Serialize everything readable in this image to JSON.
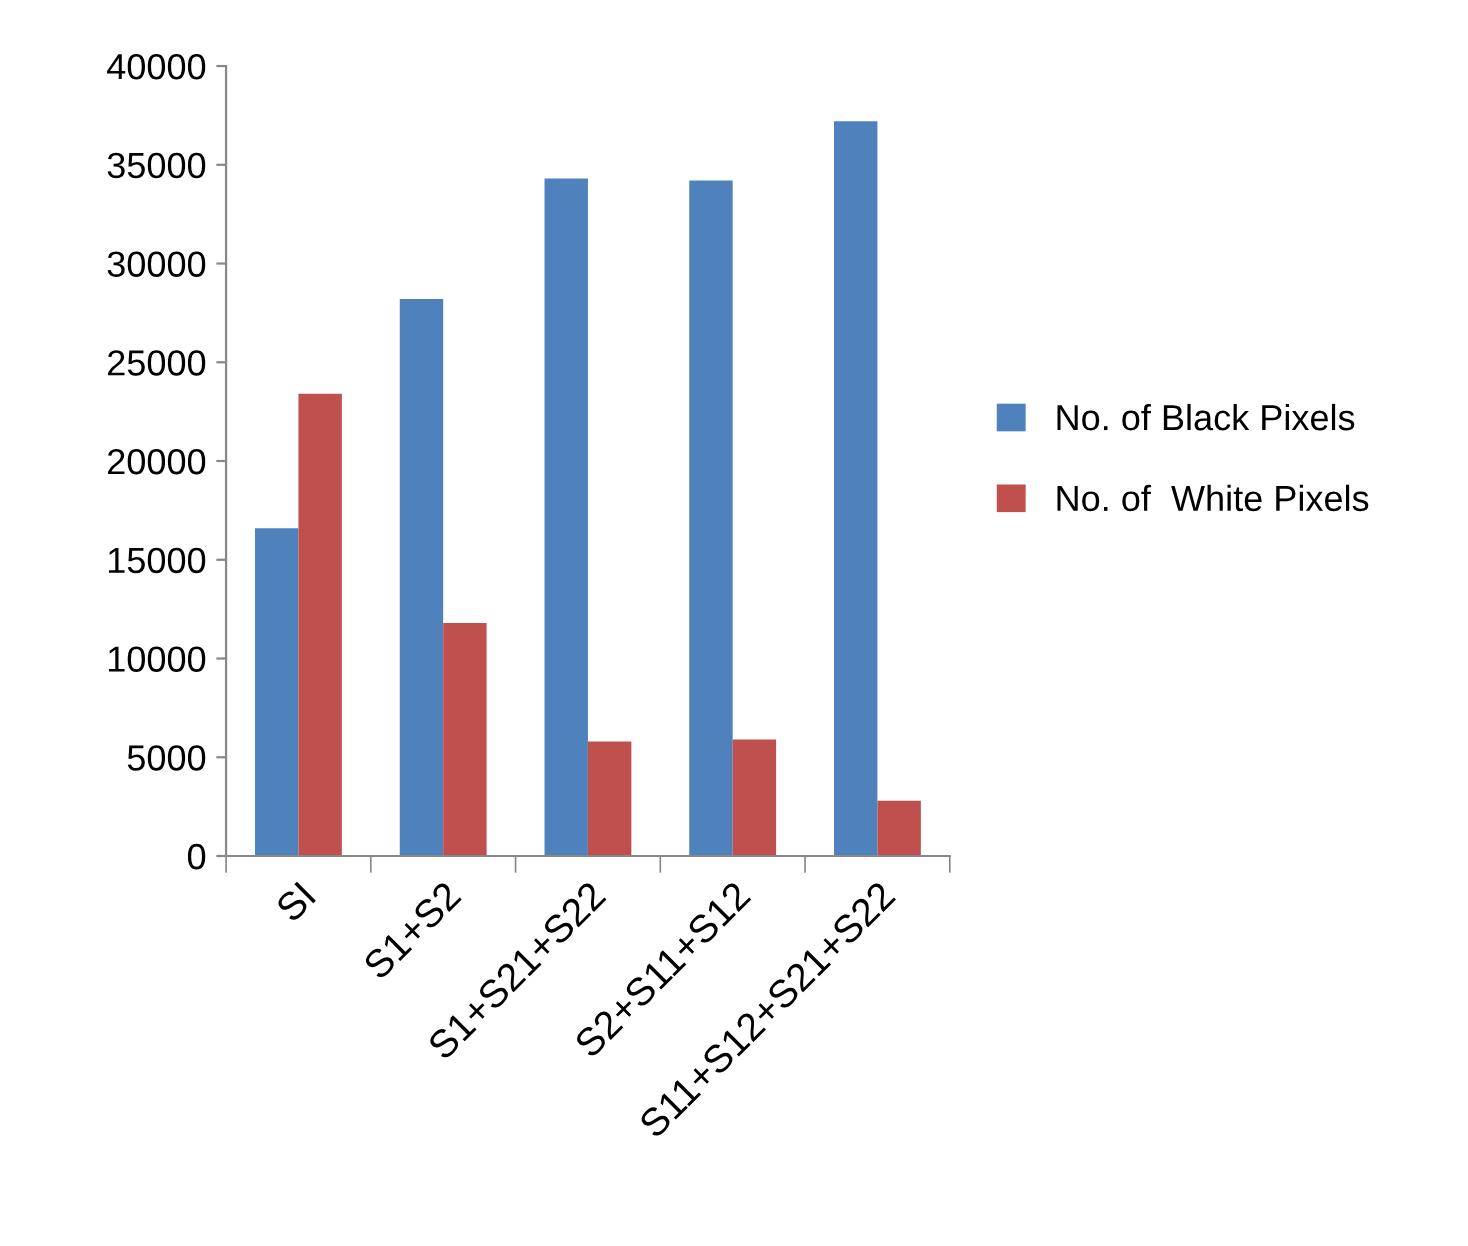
{
  "chart_data": {
    "type": "bar",
    "categories": [
      "SI",
      "S1+S2",
      "S1+S21+S22",
      "S2+S11+S12",
      "S11+S12+S21+S22"
    ],
    "series": [
      {
        "name": "No. of Black Pixels",
        "color": "#4f81bd",
        "values": [
          16600,
          28200,
          34300,
          34200,
          37200
        ]
      },
      {
        "name": "No. of  White Pixels",
        "color": "#c0504d",
        "values": [
          23400,
          11800,
          5800,
          5900,
          2800
        ]
      }
    ],
    "ylim": [
      0,
      40000
    ],
    "yticks": [
      0,
      5000,
      10000,
      15000,
      20000,
      25000,
      30000,
      35000,
      40000
    ],
    "grid": false,
    "legend": "right"
  }
}
